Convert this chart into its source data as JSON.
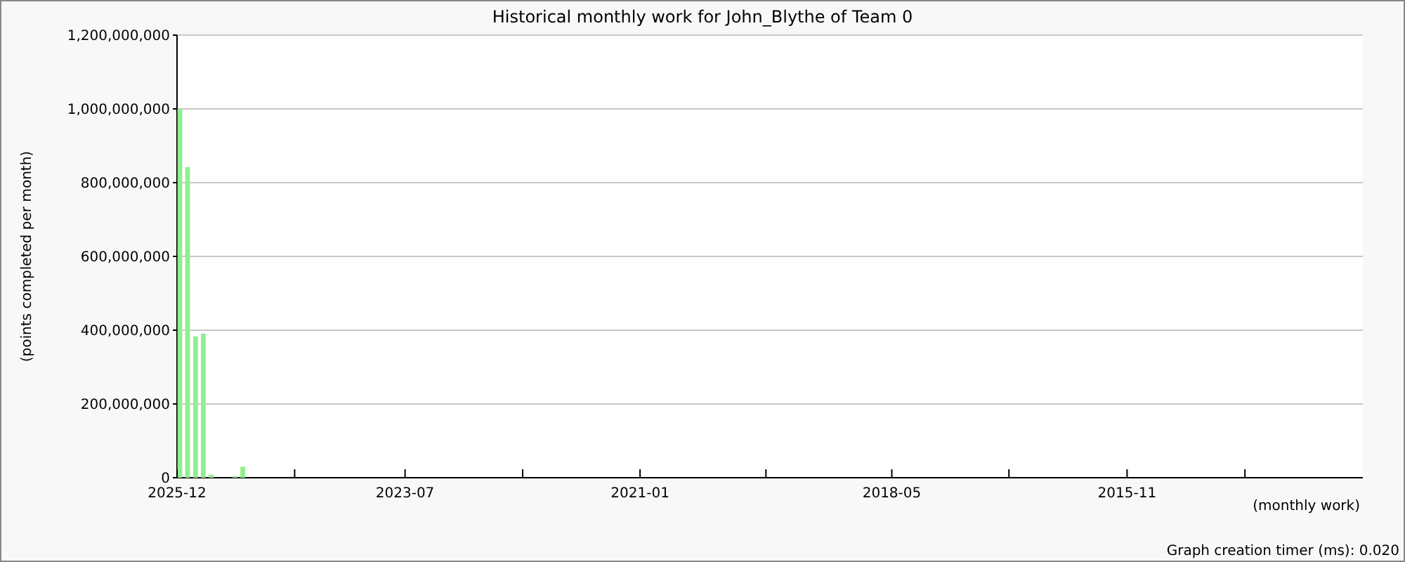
{
  "chart_data": {
    "type": "bar",
    "title": "Historical monthly work for John_Blythe of Team 0",
    "xlabel": "(monthly work)",
    "ylabel": "(points completed per month)",
    "x": [
      "2025-12",
      "2025-11",
      "2025-10",
      "2025-09",
      "2025-08",
      "2025-05",
      "2025-04"
    ],
    "values": [
      1000000000,
      842000000,
      383000000,
      391000000,
      8000000,
      4000000,
      30000000
    ],
    "color": "#90ee90",
    "xlim": [
      "2025-12",
      "2013-05"
    ],
    "xticks": [
      {
        "value": "2025-12",
        "label": "2025-12"
      },
      {
        "value": "2024-09",
        "label": null
      },
      {
        "value": "2023-07",
        "label": "2023-07"
      },
      {
        "value": "2022-04",
        "label": null
      },
      {
        "value": "2021-01",
        "label": "2021-01"
      },
      {
        "value": "2019-09",
        "label": null
      },
      {
        "value": "2018-05",
        "label": "2018-05"
      },
      {
        "value": "2017-02",
        "label": null
      },
      {
        "value": "2015-11",
        "label": "2015-11"
      },
      {
        "value": "2014-08",
        "label": null
      }
    ],
    "ylim": [
      0,
      1200000000
    ],
    "yticks": [
      {
        "value": 0,
        "label": "0"
      },
      {
        "value": 200000000,
        "label": "200,000,000"
      },
      {
        "value": 400000000,
        "label": "400,000,000"
      },
      {
        "value": 600000000,
        "label": "600,000,000"
      },
      {
        "value": 800000000,
        "label": "800,000,000"
      },
      {
        "value": 1000000000,
        "label": "1,000,000,000"
      },
      {
        "value": 1200000000,
        "label": "1,200,000,000"
      }
    ],
    "grid": "y",
    "annotations": [
      "Graph creation timer (ms): 0.020"
    ]
  }
}
